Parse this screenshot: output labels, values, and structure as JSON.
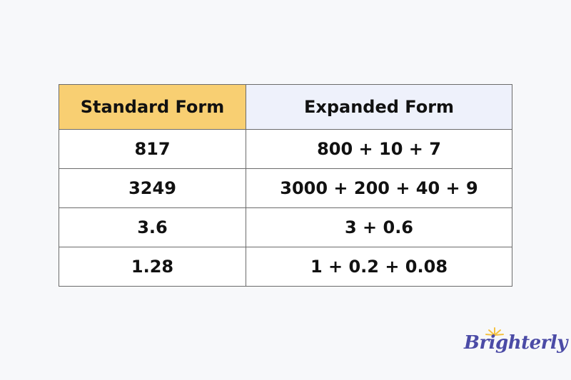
{
  "table": {
    "headers": [
      "Standard Form",
      "Expanded Form"
    ],
    "rows": [
      [
        "817",
        "800 + 10 + 7"
      ],
      [
        "3249",
        "3000 + 200 + 40 + 9"
      ],
      [
        "3.6",
        "3 + 0.6"
      ],
      [
        "1.28",
        "1 + 0.2 + 0.08"
      ]
    ]
  },
  "logo": {
    "text": "Brighterly"
  },
  "colors": {
    "header_left": "#f8cf72",
    "header_right": "#eef1fb",
    "logo": "#4b4ba6",
    "sun": "#f5c242"
  }
}
